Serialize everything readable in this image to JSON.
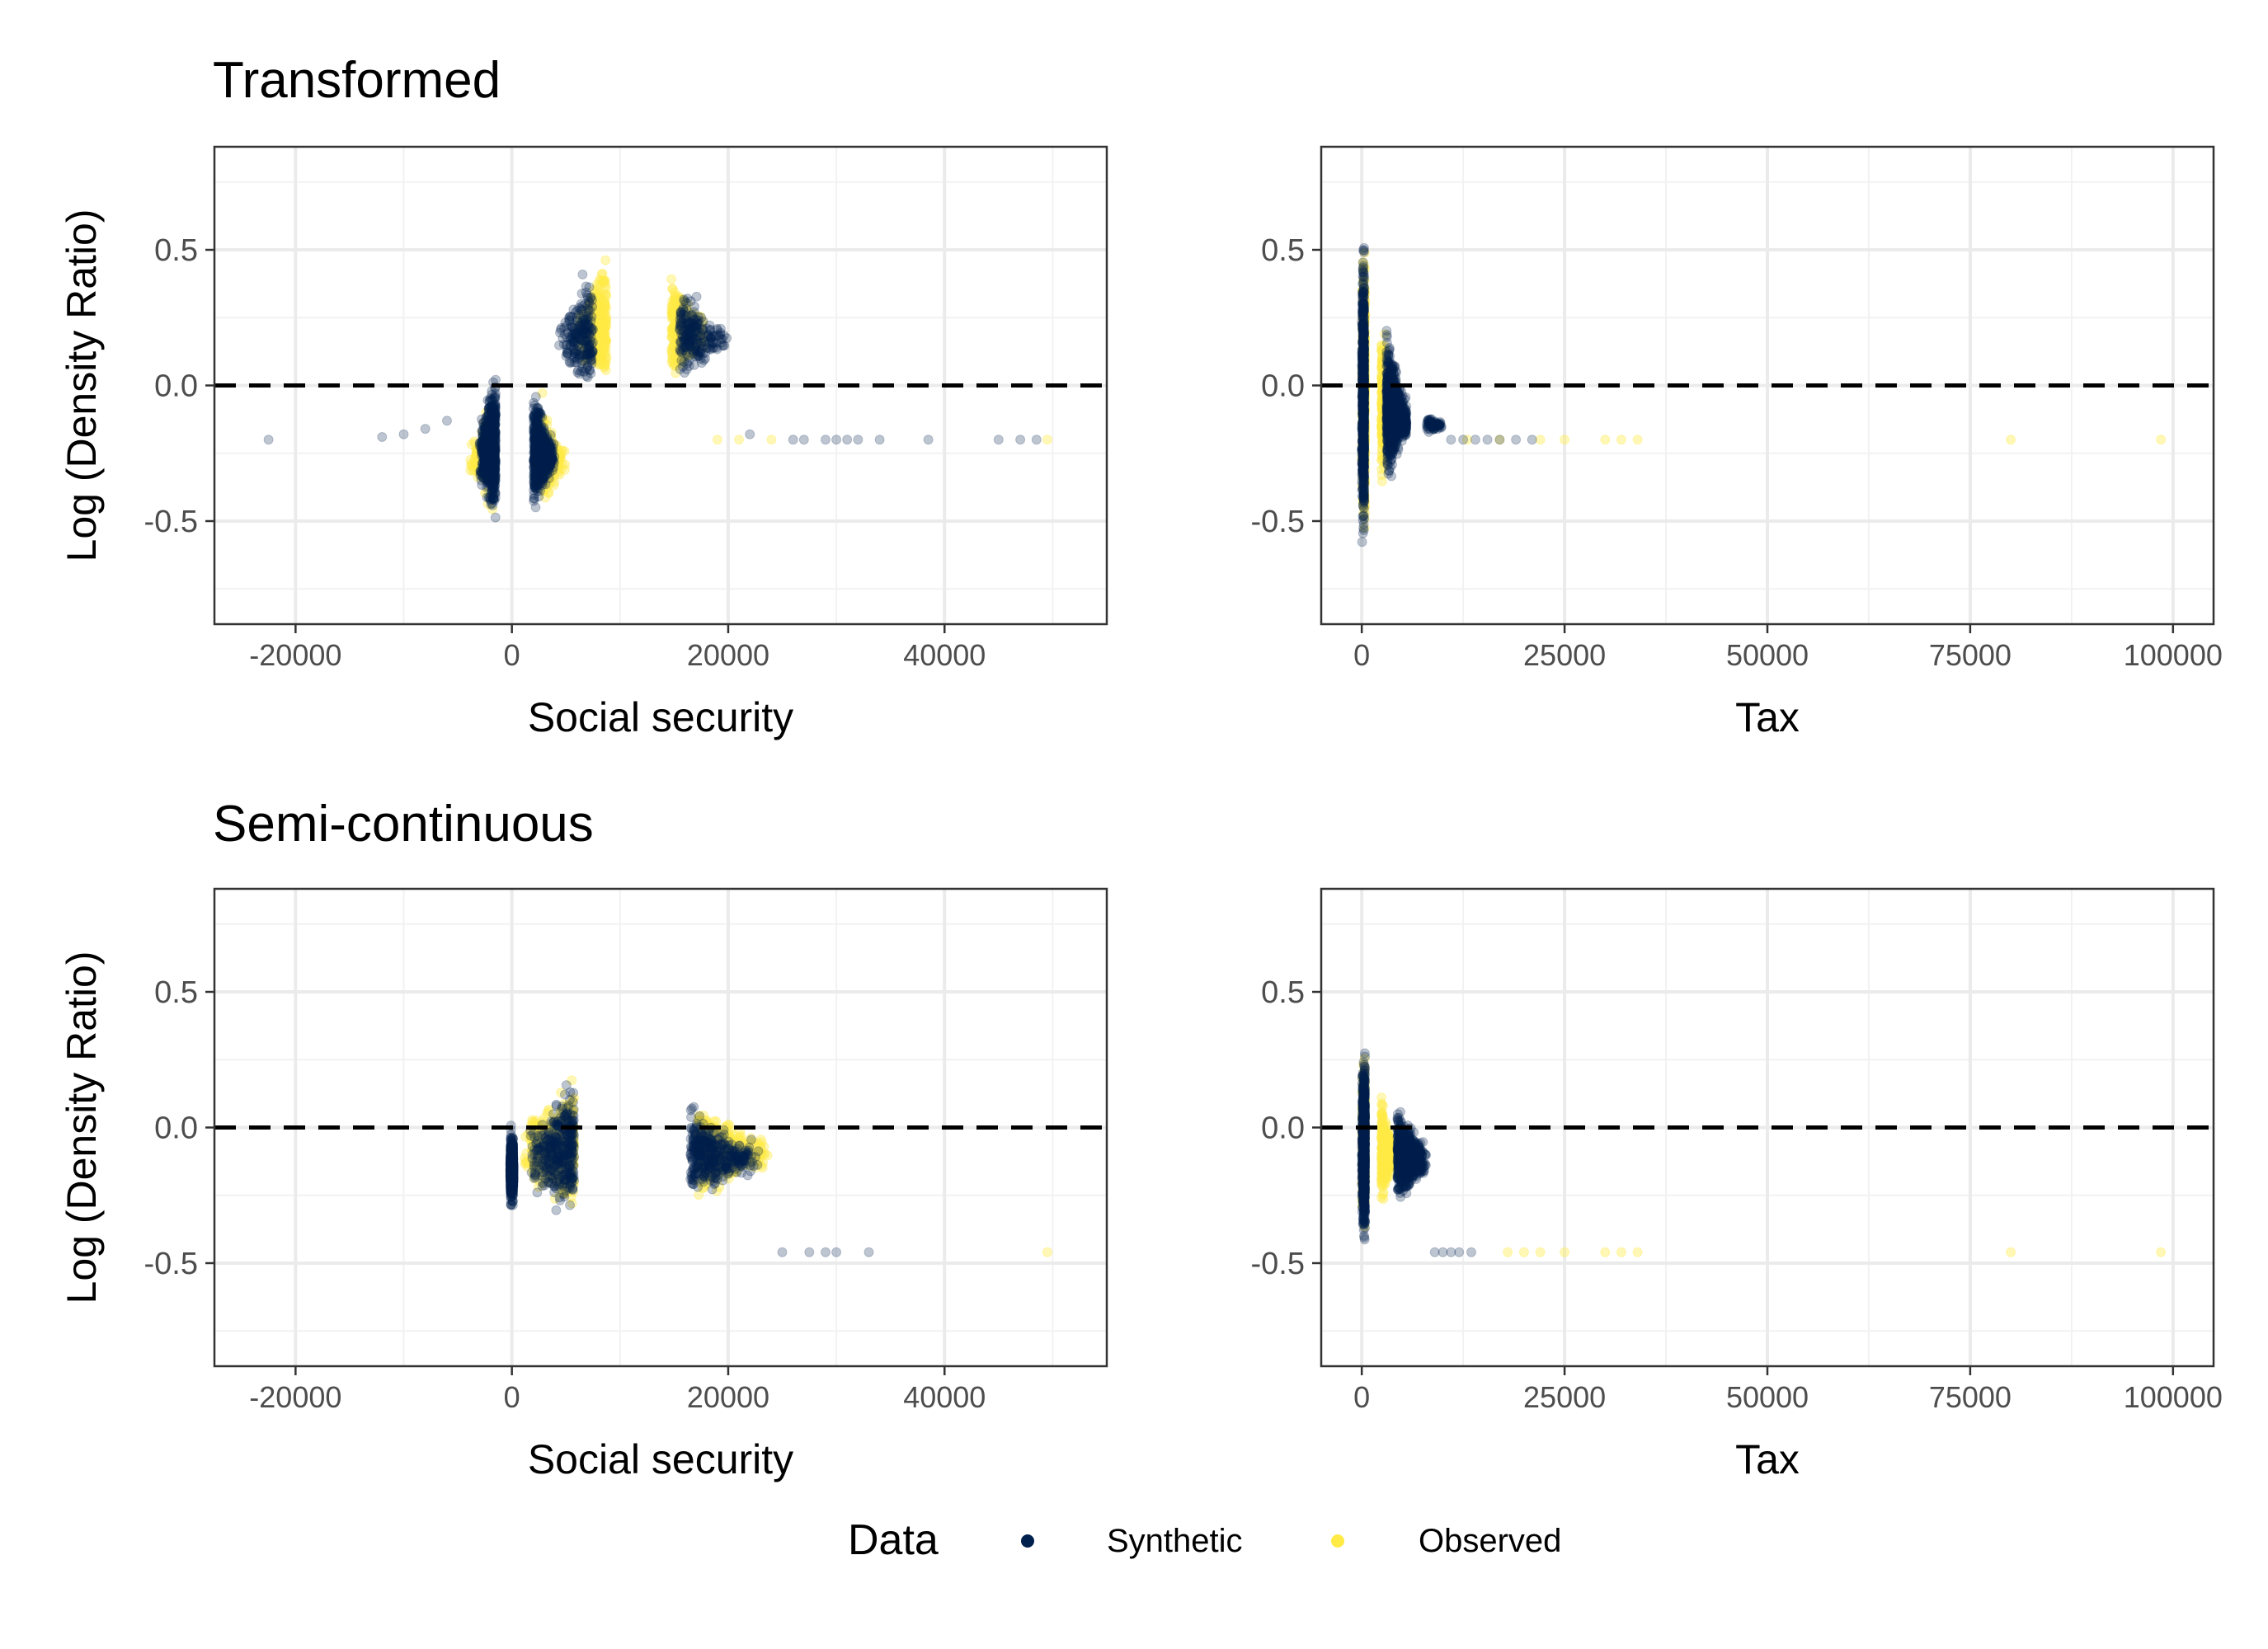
{
  "figure": {
    "colors": {
      "synthetic": "#00204D",
      "observed": "#FFEA46",
      "reference_line": "#000000"
    },
    "legend": {
      "title": "Data",
      "placement": "bottom",
      "entries": [
        {
          "label": "Synthetic",
          "color": "#00204D"
        },
        {
          "label": "Observed",
          "color": "#FFEA46"
        }
      ]
    },
    "rows": [
      {
        "title": "Transformed"
      },
      {
        "title": "Semi-continuous"
      }
    ]
  },
  "chart_data": [
    {
      "type": "scatter",
      "row": 0,
      "col": 0,
      "title": "Transformed",
      "xlabel": "Social security",
      "ylabel": "Log (Density Ratio)",
      "xlim": [
        -27500,
        55000
      ],
      "ylim": [
        -0.88,
        0.88
      ],
      "xticks": [
        -20000,
        0,
        20000,
        40000
      ],
      "xtick_labels": [
        "-20000",
        "0",
        "20000",
        "40000"
      ],
      "yticks": [
        -0.5,
        0.0,
        0.5
      ],
      "ytick_labels": [
        "-0.5",
        "0.0",
        "0.5"
      ],
      "hline": 0,
      "grid": true,
      "series": [
        {
          "name": "Observed",
          "clusters": [
            {
              "x": [
                6000,
                18000
              ],
              "ymin": -0.2,
              "ymax": 0.7,
              "peak": 11500,
              "count": 700
            },
            {
              "x": [
                -4000,
                5000
              ],
              "ymin": -0.69,
              "ymax": 0.27,
              "peak": 500,
              "count": 350
            }
          ],
          "points": [
            [
              19000,
              -0.2
            ],
            [
              21000,
              -0.2
            ],
            [
              24000,
              -0.2
            ],
            [
              49500,
              -0.2
            ]
          ]
        },
        {
          "name": "Synthetic",
          "clusters": [
            {
              "x": [
                -3000,
                4000
              ],
              "ymin": -0.67,
              "ymax": 0.27,
              "peak": 0,
              "count": 1600
            },
            {
              "x": [
                4000,
                20000
              ],
              "ymin": -0.2,
              "ymax": 0.65,
              "peak": 11000,
              "count": 450
            }
          ],
          "points": [
            [
              -22500,
              -0.2
            ],
            [
              -12000,
              -0.19
            ],
            [
              -10000,
              -0.18
            ],
            [
              -8000,
              -0.16
            ],
            [
              -6000,
              -0.13
            ],
            [
              22000,
              -0.18
            ],
            [
              26000,
              -0.2
            ],
            [
              27000,
              -0.2
            ],
            [
              29000,
              -0.2
            ],
            [
              30000,
              -0.2
            ],
            [
              31000,
              -0.2
            ],
            [
              32000,
              -0.2
            ],
            [
              34000,
              -0.2
            ],
            [
              38500,
              -0.2
            ],
            [
              45000,
              -0.2
            ],
            [
              47000,
              -0.2
            ],
            [
              48500,
              -0.2
            ]
          ]
        }
      ]
    },
    {
      "type": "scatter",
      "row": 0,
      "col": 1,
      "title": "",
      "xlabel": "Tax",
      "ylabel": "",
      "xlim": [
        -5000,
        105000
      ],
      "ylim": [
        -0.88,
        0.88
      ],
      "xticks": [
        0,
        25000,
        50000,
        75000,
        100000
      ],
      "xtick_labels": [
        "0",
        "25000",
        "50000",
        "75000",
        "100000"
      ],
      "yticks": [
        -0.5,
        0.0,
        0.5
      ],
      "ytick_labels": [
        "-0.5",
        "0.0",
        "0.5"
      ],
      "hline": 0,
      "grid": true,
      "series": [
        {
          "name": "Observed",
          "clusters": [
            {
              "x": [
                0,
                4000
              ],
              "ymin": -0.7,
              "ymax": 0.7,
              "peak": 800,
              "count": 900
            }
          ],
          "points": [
            [
              13000,
              -0.2
            ],
            [
              17000,
              -0.2
            ],
            [
              22000,
              -0.2
            ],
            [
              25000,
              -0.2
            ],
            [
              30000,
              -0.2
            ],
            [
              32000,
              -0.2
            ],
            [
              34000,
              -0.2
            ],
            [
              80000,
              -0.2
            ],
            [
              98500,
              -0.2
            ]
          ]
        },
        {
          "name": "Synthetic",
          "clusters": [
            {
              "x": [
                0,
                5500
              ],
              "ymin": -0.68,
              "ymax": 0.62,
              "peak": 600,
              "count": 1800
            },
            {
              "x": [
                5000,
                10000
              ],
              "ymin": -0.22,
              "ymax": -0.05,
              "peak": 6000,
              "count": 150
            }
          ],
          "points": [
            [
              11000,
              -0.2
            ],
            [
              12500,
              -0.2
            ],
            [
              14000,
              -0.2
            ],
            [
              15500,
              -0.2
            ],
            [
              17000,
              -0.2
            ],
            [
              19000,
              -0.2
            ],
            [
              21000,
              -0.2
            ]
          ]
        }
      ]
    },
    {
      "type": "scatter",
      "row": 1,
      "col": 0,
      "title": "Semi-continuous",
      "xlabel": "Social security",
      "ylabel": "Log (Density Ratio)",
      "xlim": [
        -27500,
        55000
      ],
      "ylim": [
        -0.88,
        0.88
      ],
      "xticks": [
        -20000,
        0,
        20000,
        40000
      ],
      "xtick_labels": [
        "-20000",
        "0",
        "20000",
        "40000"
      ],
      "yticks": [
        -0.5,
        0.0,
        0.5
      ],
      "ytick_labels": [
        "-0.5",
        "0.0",
        "0.5"
      ],
      "hline": 0,
      "grid": true,
      "series": [
        {
          "name": "Observed",
          "clusters": [
            {
              "x": [
                1000,
                24000
              ],
              "ymin": -0.47,
              "ymax": 0.38,
              "peak": 10500,
              "count": 900
            }
          ],
          "points": [
            [
              49500,
              -0.46
            ]
          ]
        },
        {
          "name": "Synthetic",
          "clusters": [
            {
              "x": [
                -150,
                150
              ],
              "ymin": -0.47,
              "ymax": 0.24,
              "peak": 0,
              "count": 900
            },
            {
              "x": [
                1500,
                23000
              ],
              "ymin": -0.47,
              "ymax": 0.35,
              "peak": 10000,
              "count": 800
            }
          ],
          "points": [
            [
              25000,
              -0.46
            ],
            [
              27500,
              -0.46
            ],
            [
              29000,
              -0.46
            ],
            [
              30000,
              -0.46
            ],
            [
              33000,
              -0.46
            ]
          ]
        }
      ]
    },
    {
      "type": "scatter",
      "row": 1,
      "col": 1,
      "title": "",
      "xlabel": "Tax",
      "ylabel": "",
      "xlim": [
        -5000,
        105000
      ],
      "ylim": [
        -0.88,
        0.88
      ],
      "xticks": [
        0,
        25000,
        50000,
        75000,
        100000
      ],
      "xtick_labels": [
        "0",
        "25000",
        "50000",
        "75000",
        "100000"
      ],
      "yticks": [
        -0.5,
        0.0,
        0.5
      ],
      "ytick_labels": [
        "-0.5",
        "0.0",
        "0.5"
      ],
      "hline": 0,
      "grid": true,
      "series": [
        {
          "name": "Observed",
          "clusters": [
            {
              "x": [
                0,
                4000
              ],
              "ymin": -0.47,
              "ymax": 0.37,
              "peak": 800,
              "count": 800
            }
          ],
          "points": [
            [
              18000,
              -0.46
            ],
            [
              20000,
              -0.46
            ],
            [
              22000,
              -0.46
            ],
            [
              25000,
              -0.46
            ],
            [
              30000,
              -0.46
            ],
            [
              32000,
              -0.46
            ],
            [
              34000,
              -0.46
            ],
            [
              80000,
              -0.46
            ],
            [
              98500,
              -0.46
            ]
          ]
        },
        {
          "name": "Synthetic",
          "clusters": [
            {
              "x": [
                0,
                8000
              ],
              "ymin": -0.47,
              "ymax": 0.34,
              "peak": 800,
              "count": 1800
            }
          ],
          "points": [
            [
              9000,
              -0.46
            ],
            [
              10000,
              -0.46
            ],
            [
              11000,
              -0.46
            ],
            [
              12000,
              -0.46
            ],
            [
              13500,
              -0.46
            ]
          ]
        }
      ]
    }
  ]
}
